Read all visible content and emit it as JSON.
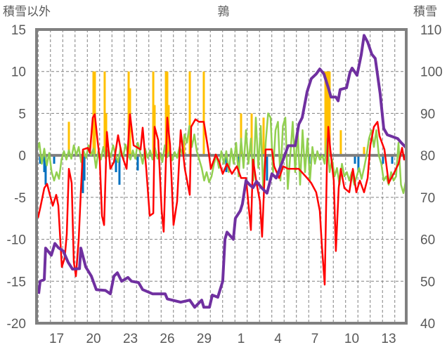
{
  "chart_data": {
    "type": "line",
    "title": "鶉",
    "ylabel_left": "積雪以外",
    "ylabel_right": "積雪",
    "x_unit": "day index (0 = day 17)",
    "xlim": [
      -1.63,
      28.43
    ],
    "ylim_left": [
      -20,
      15
    ],
    "ylim_right": [
      40,
      110
    ],
    "yticks_left": [
      15,
      10,
      5,
      0,
      -5,
      -10,
      -15,
      -20
    ],
    "yticks_right": [
      110,
      100,
      90,
      80,
      70,
      60,
      50,
      40
    ],
    "xticks": [
      {
        "x": 0,
        "label": "17"
      },
      {
        "x": 3,
        "label": "20"
      },
      {
        "x": 6,
        "label": "23"
      },
      {
        "x": 9,
        "label": "26"
      },
      {
        "x": 12,
        "label": "29"
      },
      {
        "x": 15,
        "label": "1"
      },
      {
        "x": 18,
        "label": "4"
      },
      {
        "x": 21,
        "label": "7"
      },
      {
        "x": 24,
        "label": "10"
      },
      {
        "x": 27,
        "label": "13"
      }
    ],
    "grid": true,
    "colors": {
      "red": "#ff0000",
      "green": "#92d050",
      "purple": "#7030a0",
      "orange": "#ffc000",
      "blue": "#0070c0",
      "axis": "#808080",
      "text": "#595959"
    },
    "series": [
      {
        "name": "precip-positive",
        "type": "bar",
        "axis": "left",
        "color": "#ffc000",
        "x": [
          1.0,
          3.0,
          3.11,
          3.91,
          4.03,
          5.86,
          5.97,
          7.86,
          7.97,
          8.89,
          9.0,
          9.11,
          10.37,
          10.83,
          11.97,
          15.0,
          15.86,
          16.83,
          21.86,
          22.03,
          22.2,
          23.11,
          25.0
        ],
        "y": [
          4,
          10,
          10,
          10,
          5,
          10,
          8,
          10,
          6,
          10,
          10,
          6,
          1.8,
          10,
          10,
          5,
          5,
          4.5,
          10,
          10,
          10,
          3,
          1
        ]
      },
      {
        "name": "precip-negative",
        "type": "bar",
        "axis": "left",
        "color": "#0070c0",
        "x": [
          -1.34,
          -1.0,
          -0.89,
          -0.2,
          2.09,
          2.14,
          2.26,
          4.83,
          5.11,
          6.6,
          13.8,
          14.83,
          17.11,
          18.26,
          19.4,
          20.54,
          24.26,
          24.54,
          26.54,
          27.29
        ],
        "y": [
          -1,
          -2,
          -3.5,
          -1,
          -2,
          -4.5,
          -3,
          -2,
          -3.5,
          -1.8,
          -2,
          -1,
          -3,
          -2,
          -1,
          -1,
          -1,
          -2,
          -1,
          -1
        ]
      },
      {
        "name": "green-line",
        "type": "line",
        "axis": "left",
        "color": "#92d050",
        "x0": -1.6,
        "dx": 0.2,
        "y": [
          0.5,
          1.5,
          -1,
          0.8,
          -1.2,
          0.3,
          -2,
          -3,
          -2,
          -2.8,
          -0.5,
          0.5,
          -0.5,
          0.6,
          -0.4,
          1.2,
          0,
          1,
          -0.8,
          0.5,
          -0.3,
          1.2,
          0,
          0.8,
          -1.5,
          0.5,
          -0.5,
          1,
          -0.4,
          0.7,
          -0.2,
          1.2,
          0,
          -0.8,
          0.9,
          -0.3,
          1.3,
          0.2,
          -0.5,
          0.6,
          -0.4,
          1.5,
          0.3,
          -1,
          0.8,
          -0.3,
          0.6,
          -0.5,
          0.9,
          -0.4,
          0.3,
          -0.8,
          1.2,
          -0.2,
          0.5,
          -0.6,
          0.4,
          -0.3,
          1,
          0.2,
          2.5,
          1.5,
          3.5,
          1,
          2.5,
          0.5,
          -0.5,
          -1.5,
          -3,
          -2,
          -3.2,
          -2.5,
          -1,
          0,
          -1.5,
          0.5,
          -1,
          0.5,
          -2,
          0.8,
          -1,
          1.5,
          -2.5,
          2,
          -1.5,
          3,
          -1,
          2,
          -3,
          4.5,
          -1.5,
          3.5,
          -4,
          1.5,
          5,
          4.5,
          -2,
          3,
          4,
          -3,
          3.5,
          4.5,
          -4,
          0,
          4,
          -2,
          3,
          -3.5,
          3,
          -2,
          2,
          -3,
          1,
          -1,
          0.5,
          -0.5,
          0,
          -1,
          2,
          -2,
          -0.5,
          -2.5,
          -1.5,
          -3.5,
          -1,
          -2.5,
          -2,
          -3,
          -2,
          -3.5,
          -2.5,
          -1.5,
          -2.8,
          -1.5,
          0,
          2,
          3,
          1,
          3,
          0,
          -1,
          -3,
          -2.5,
          -3.5,
          -2,
          -3,
          -2.5,
          1.5,
          -3.5,
          -4.5,
          -3
        ]
      },
      {
        "name": "red-line",
        "type": "line",
        "axis": "left",
        "color": "#ff0000",
        "x": [
          -1.51,
          -1.29,
          -1.0,
          -0.77,
          -0.6,
          -0.31,
          -0.03,
          0.14,
          0.43,
          0.66,
          0.83,
          1.0,
          1.23,
          1.4,
          1.57,
          1.8,
          1.97,
          2.14,
          2.54,
          2.71,
          2.94,
          3.11,
          3.29,
          3.51,
          3.69,
          3.86,
          4.09,
          4.37,
          4.66,
          5.0,
          5.29,
          5.69,
          5.97,
          6.26,
          6.83,
          7.0,
          7.29,
          7.57,
          7.86,
          7.97,
          8.26,
          8.54,
          8.71,
          9.0,
          9.23,
          9.51,
          9.8,
          10.09,
          10.43,
          10.83,
          10.94,
          11.29,
          11.57,
          11.97,
          12.37,
          12.54,
          12.94,
          13.23,
          13.51,
          13.86,
          14.26,
          14.66,
          15.0,
          15.4,
          15.8,
          15.97,
          16.26,
          16.54,
          16.71,
          17.0,
          17.51,
          17.69,
          18.09,
          18.43,
          18.83,
          19.4,
          19.69,
          20.37,
          20.71,
          21.11,
          21.4,
          21.57,
          21.8,
          21.97,
          22.09,
          22.26,
          22.54,
          22.71,
          22.94,
          23.11,
          23.4,
          23.8,
          24.09,
          24.37,
          24.66,
          25.0,
          25.29,
          25.51,
          25.8,
          26.09,
          26.26,
          26.66,
          27.0,
          27.4,
          27.8,
          28.09,
          28.26,
          28.43
        ],
        "y": [
          -7.45,
          -6.0,
          -3.9,
          -3.4,
          -4.4,
          -6.0,
          -4.7,
          -6.0,
          -13.3,
          -12.2,
          -9.4,
          -1.6,
          -3.3,
          -12.7,
          -14.4,
          -10,
          -4.4,
          0.7,
          0.9,
          0.3,
          4.5,
          4.9,
          2.3,
          -0.5,
          -7.2,
          -8.3,
          2.8,
          -1.6,
          -0.8,
          2.4,
          0.1,
          -1.6,
          4.9,
          1.2,
          0.7,
          3.3,
          -1.6,
          -7.2,
          -6.9,
          3.4,
          1.8,
          -6.6,
          -9.1,
          4.5,
          1.2,
          -8.3,
          -5.5,
          3,
          -1.6,
          -4.7,
          3.4,
          4.3,
          4,
          4,
          0.3,
          -1.6,
          0.1,
          -0.8,
          -2.2,
          -1,
          -2.2,
          -1.3,
          -2.7,
          -2.7,
          -8.9,
          -0.5,
          -3.3,
          -5.5,
          -9.7,
          0.7,
          0.7,
          -1.3,
          -2.7,
          -1.3,
          -1.6,
          -1.6,
          -1.6,
          -2.7,
          -3.3,
          -4.4,
          -6.6,
          -10.8,
          -15.4,
          -1.6,
          3.4,
          0.7,
          -3,
          -11.4,
          -3.9,
          -1.6,
          -3.9,
          -4.4,
          -1.6,
          -4.4,
          -3,
          -4.4,
          -2.7,
          1.2,
          3.4,
          4,
          2.3,
          0.7,
          -3.3,
          -2.2,
          -1,
          0.9,
          -0.5,
          0.3
        ]
      },
      {
        "name": "snow-depth",
        "type": "line",
        "axis": "right",
        "color": "#7030a0",
        "x": [
          -1.46,
          -1.34,
          -1.0,
          -0.89,
          -0.43,
          -0.14,
          0.14,
          0.54,
          0.94,
          1.29,
          1.86,
          1.97,
          2.37,
          2.83,
          3.23,
          3.97,
          4.37,
          4.66,
          4.94,
          5.29,
          5.8,
          6.09,
          6.66,
          7.0,
          7.8,
          8.83,
          9.0,
          10.09,
          10.83,
          11.23,
          11.8,
          11.97,
          12.43,
          12.66,
          13.11,
          13.51,
          13.69,
          13.86,
          14.37,
          14.54,
          14.94,
          15.11,
          15.4,
          15.69,
          15.97,
          16.26,
          16.66,
          17.11,
          17.51,
          17.86,
          18.43,
          18.83,
          19.4,
          19.69,
          19.97,
          20.37,
          20.71,
          21.11,
          21.4,
          21.74,
          22.14,
          22.31,
          22.71,
          22.89,
          23.06,
          23.57,
          23.86,
          24.03,
          24.43,
          24.77,
          25.0,
          25.29,
          25.63,
          25.91,
          26.31,
          26.6,
          26.89,
          27.74,
          28.03,
          28.43
        ],
        "y": [
          47.0,
          50,
          50.4,
          57.9,
          56.2,
          59,
          58,
          57.2,
          54.5,
          52.9,
          53,
          57.9,
          53.4,
          51.2,
          48,
          47.8,
          47,
          51.2,
          52,
          50,
          50.9,
          50,
          49.7,
          48,
          47,
          47,
          45.8,
          45,
          45.5,
          43.8,
          45.5,
          43.8,
          43.8,
          46.7,
          46.2,
          50,
          60,
          61.7,
          60,
          65,
          66.8,
          68.4,
          74,
          73,
          72.3,
          73.8,
          72.3,
          71,
          75.6,
          74.6,
          79,
          82.3,
          82.3,
          87.4,
          89,
          95.2,
          98.3,
          99.4,
          100.6,
          99.4,
          95.7,
          93.9,
          93.9,
          93,
          95.7,
          96.1,
          99.8,
          100.8,
          99.1,
          104,
          108.6,
          107,
          104.1,
          103.1,
          94.7,
          86.4,
          84.9,
          84,
          83,
          81.8
        ]
      }
    ]
  }
}
